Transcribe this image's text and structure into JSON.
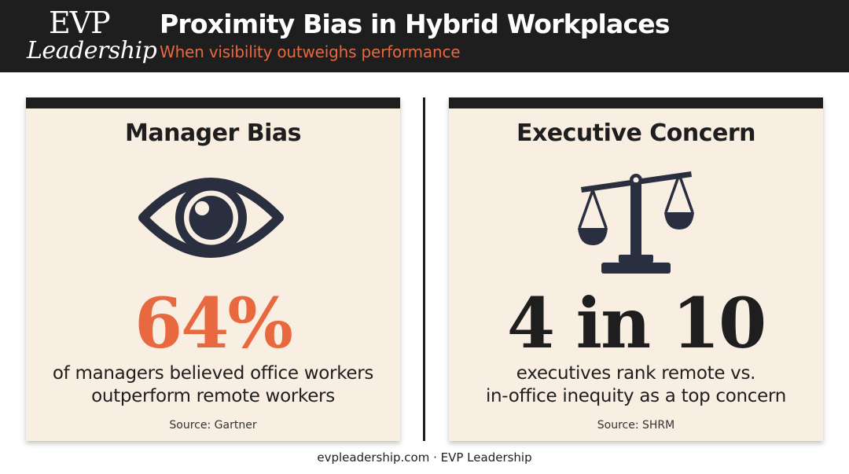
{
  "header": {
    "logo_top": "EVP",
    "logo_bottom": "Leadership",
    "title": "Proximity Bias in Hybrid Workplaces",
    "subtitle": "When visibility outweighs performance"
  },
  "cards": [
    {
      "title": "Manager Bias",
      "icon": "eye-icon",
      "stat": "64%",
      "description_line1": "of managers believed office workers",
      "description_line2": "outperform remote workers",
      "source": "Source: Gartner"
    },
    {
      "title": "Executive Concern",
      "icon": "scale-icon",
      "stat": "4 in 10",
      "description_line1": "executives rank remote vs.",
      "description_line2": "in-office inequity as a top concern",
      "source": "Source: SHRM"
    }
  ],
  "footer": "evpleadership.com · EVP Leadership",
  "colors": {
    "accent": "#e8683f",
    "dark": "#1e1e1e",
    "card_bg": "#f9eee2"
  }
}
